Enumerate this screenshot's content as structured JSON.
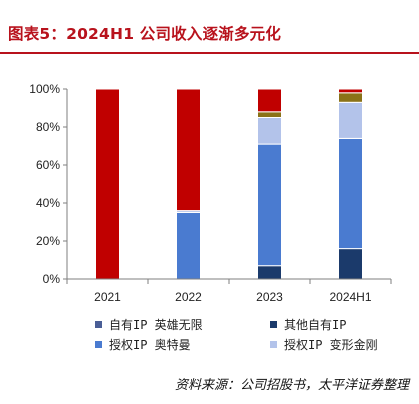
{
  "header": {
    "title": "图表5：2024H1 公司收入逐渐多元化"
  },
  "footer": {
    "source": "资料来源：公司招股书，太平洋证券整理"
  },
  "colors": {
    "title": "#b8121c",
    "accent_rule": "#b8121c",
    "axis": "#7f7f7f"
  },
  "chart_data": {
    "type": "bar",
    "stacked": true,
    "categories": [
      "2021",
      "2022",
      "2023",
      "2024H1"
    ],
    "ylim": [
      0,
      100
    ],
    "yticks": [
      0,
      20,
      40,
      60,
      80,
      100
    ],
    "ytick_labels": [
      "0%",
      "20%",
      "40%",
      "60%",
      "80%",
      "100%"
    ],
    "legend_position": "bottom",
    "grid": false,
    "series": [
      {
        "name": "自有IP 英雄无限",
        "color": "#4a5e96",
        "values": [
          0,
          0,
          0,
          0
        ]
      },
      {
        "name": "其他自有IP",
        "color": "#1b3a6b",
        "values": [
          0,
          0,
          7,
          16
        ]
      },
      {
        "name": "授权IP 奥特曼",
        "color": "#4a7bd0",
        "values": [
          0,
          35,
          64,
          58
        ]
      },
      {
        "name": "授权IP 变形金刚",
        "color": "#b3c3ea",
        "values": [
          0,
          1,
          14,
          19
        ]
      },
      {
        "name": "",
        "color": "#8a7218",
        "values": [
          0,
          0,
          3,
          5
        ]
      },
      {
        "name": "",
        "color": "#c00000",
        "values": [
          100,
          64,
          12,
          2
        ]
      }
    ]
  }
}
